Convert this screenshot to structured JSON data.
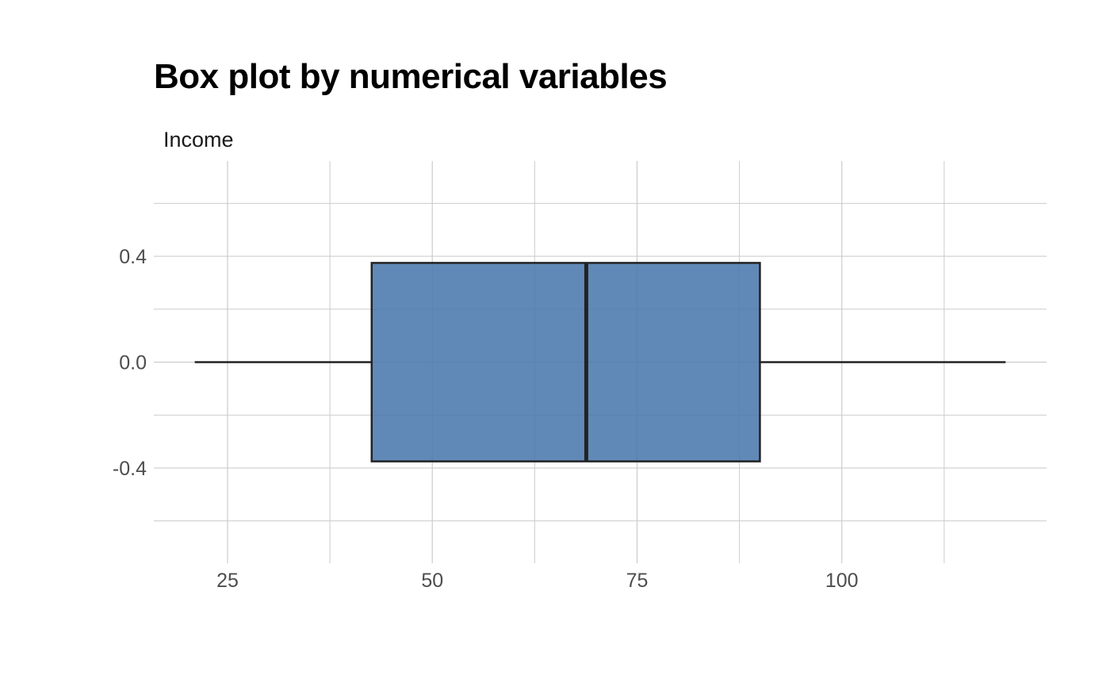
{
  "chart_data": {
    "type": "boxplot",
    "title": "Box plot by numerical variables",
    "facet_label": "Income",
    "orientation": "horizontal",
    "xlim": [
      16,
      125
    ],
    "ylim": [
      -0.76,
      0.76
    ],
    "x_ticks": [
      25,
      50,
      75,
      100
    ],
    "x_tick_labels": [
      "25",
      "50",
      "75",
      "100"
    ],
    "y_ticks": [
      0.4,
      0.0,
      -0.4
    ],
    "y_tick_labels": [
      "0.4",
      "0.0",
      "-0.4"
    ],
    "grid": true,
    "box_color": "#4a79ad",
    "line_color": "#222222",
    "grid_color": "#cccccc",
    "box": {
      "whisker_low": 21,
      "q1": 42.6,
      "median": 68.8,
      "q3": 90,
      "whisker_high": 120,
      "box_half_height": 0.375
    }
  }
}
